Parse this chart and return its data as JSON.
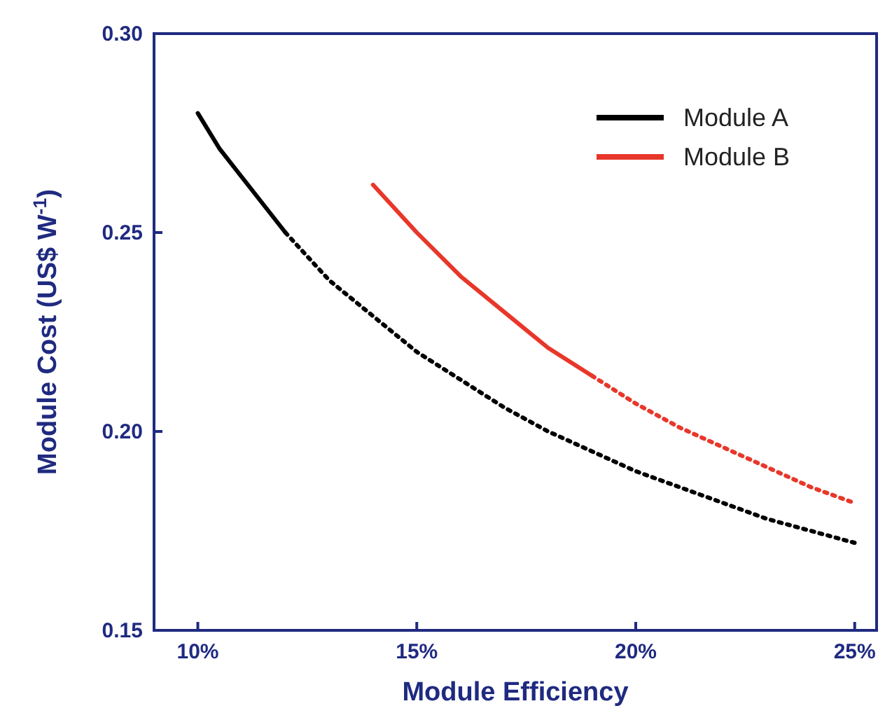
{
  "chart_data": {
    "type": "line",
    "xlabel": "Module Efficiency",
    "ylabel": "Module Cost (US$ W$^{-1}$)",
    "xlim": [
      9,
      25.5
    ],
    "ylim": [
      0.15,
      0.3
    ],
    "xticks": [
      {
        "value": 10,
        "label": "10%"
      },
      {
        "value": 15,
        "label": "15%"
      },
      {
        "value": 20,
        "label": "20%"
      },
      {
        "value": 25,
        "label": "25%"
      }
    ],
    "yticks": [
      0.15,
      {
        "value": 0.2,
        "label": "0.20"
      },
      0.25,
      {
        "value": 0.3,
        "label": "0.30"
      }
    ],
    "grid": false,
    "legend": "top right",
    "marker": "none",
    "series": [
      {
        "name": "Module A",
        "color": "#000000",
        "line_style": "solid",
        "x": [
          10,
          10.5,
          11,
          11.5,
          12
        ],
        "values": [
          0.28,
          0.271,
          0.264,
          0.257,
          0.25
        ]
      },
      {
        "color": "#000000",
        "line_style": "dotted",
        "x": [
          12,
          13,
          14,
          15,
          16,
          17,
          18,
          19,
          20,
          21,
          22,
          23,
          24,
          25
        ],
        "values": [
          0.25,
          0.238,
          0.229,
          0.22,
          0.213,
          0.206,
          0.2,
          0.195,
          0.19,
          0.186,
          0.182,
          0.178,
          0.175,
          0.172
        ]
      },
      {
        "name": "Module B",
        "color": "#e8372a",
        "line_style": "solid",
        "x": [
          14,
          15,
          16,
          17,
          18,
          19
        ],
        "values": [
          0.262,
          0.25,
          0.239,
          0.23,
          0.221,
          0.214
        ]
      },
      {
        "color": "#e8372a",
        "line_style": "dotted",
        "x": [
          19,
          20,
          21,
          22,
          23,
          24,
          25
        ],
        "values": [
          0.214,
          0.207,
          0.201,
          0.196,
          0.191,
          0.186,
          0.182
        ]
      }
    ]
  }
}
